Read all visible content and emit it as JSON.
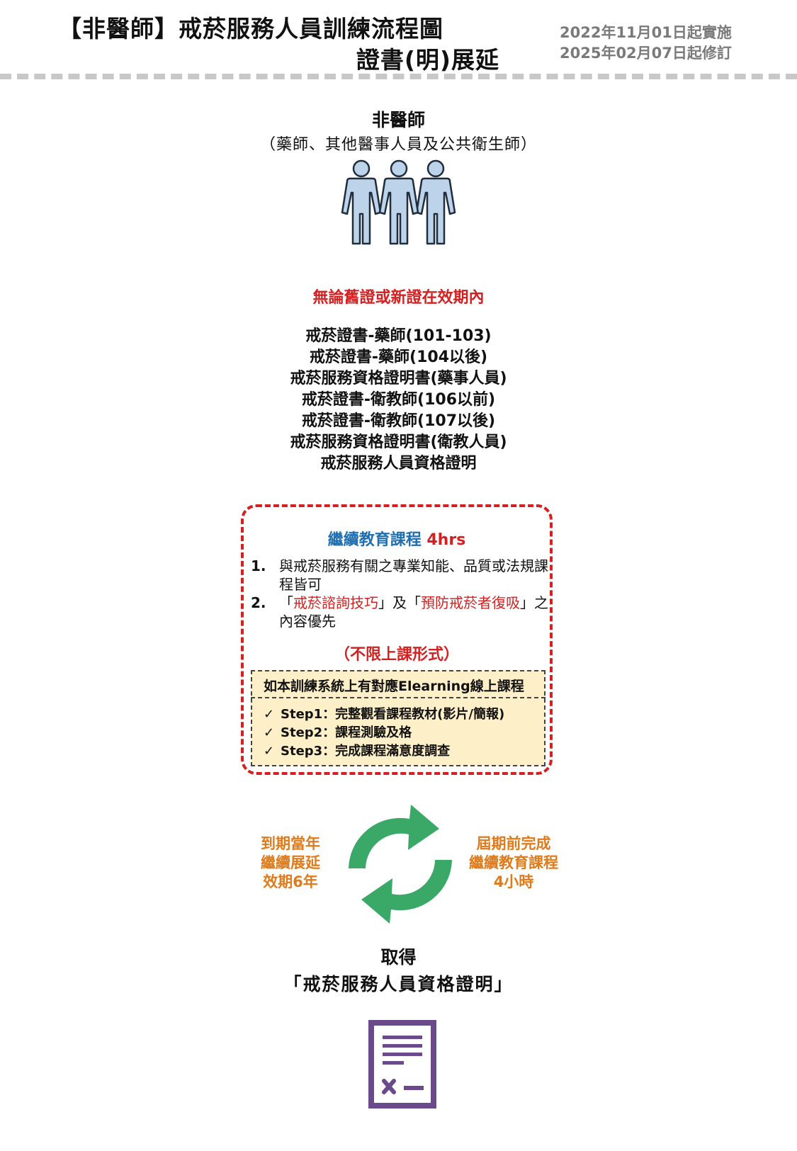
{
  "header": {
    "title_line1": "【非醫師】戒菸服務人員訓練流程圖",
    "title_line2": "證書(明)展延",
    "date_effective": "2022年11月01日起實施",
    "date_revised": "2025年02月07日起修訂"
  },
  "audience": {
    "title": "非醫師",
    "subtitle": "（藥師、其他醫事人員及公共衛生師）",
    "icon": "people-group-icon"
  },
  "validity_note": "無論舊證或新證在效期內",
  "certificates": [
    "戒菸證書-藥師(101-103)",
    "戒菸證書-藥師(104以後)",
    "戒菸服務資格證明書(藥事人員)",
    "戒菸證書-衛教師(106以前)",
    "戒菸證書-衛教師(107以後)",
    "戒菸服務資格證明書(衛教人員)",
    "戒菸服務人員資格證明"
  ],
  "continuing_education": {
    "title": "繼續教育課程",
    "hours": "4hrs",
    "item1_num": "1.",
    "item1_text": "與戒菸服務有關之專業知能、品質或法規課程皆可",
    "item2_num": "2.",
    "item2_open1": "「",
    "item2_red1": "戒菸諮詢技巧",
    "item2_mid": "」及「",
    "item2_red2": "預防戒菸者復吸",
    "item2_close": "」",
    "item2_rest": "之內容優先",
    "format_note": "（不限上課形式）",
    "elearning_header": "如本訓練系統上有對應Elearning線上課程",
    "steps": [
      "Step1：完整觀看課程教材(影片/簡報)",
      "Step2：課程測驗及格",
      "Step3：完成課程滿意度調查"
    ],
    "check_symbol": "✓"
  },
  "cycle": {
    "left_lines": [
      "到期當年",
      "繼續展延",
      "效期6年"
    ],
    "right_lines": [
      "屆期前完成",
      "繼續教育課程",
      "4小時"
    ],
    "icon": "renew-cycle-icon"
  },
  "outcome": {
    "line1": "取得",
    "line2": "「戒菸服務人員資格證明」",
    "icon": "certificate-document-icon"
  },
  "colors": {
    "red": "#d42020",
    "blue": "#1f6fb0",
    "orange": "#e07b1c",
    "green": "#3aa867",
    "purple": "#6b4a8c",
    "person_fill": "#bcd3ea",
    "elearning_bg": "#fdefc8"
  }
}
